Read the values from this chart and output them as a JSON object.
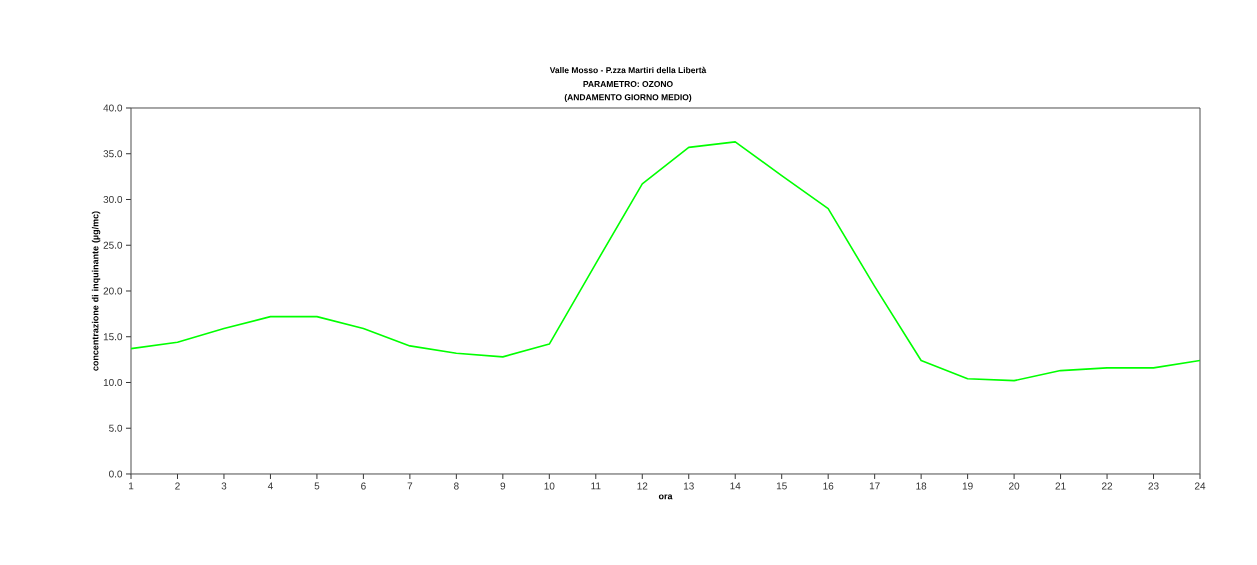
{
  "chart_data": {
    "type": "line",
    "title": "Valle Mosso - P.zza Martiri della Libertà",
    "subtitle": "PARAMETRO: OZONO",
    "annotations": [
      "(ANDAMENTO GIORNO MEDIO)"
    ],
    "xlabel": "ora",
    "ylabel": "concentrazione di inquinante (µg/mc)",
    "x": [
      1,
      2,
      3,
      4,
      5,
      6,
      7,
      8,
      9,
      10,
      11,
      12,
      13,
      14,
      15,
      16,
      17,
      18,
      19,
      20,
      21,
      22,
      23,
      24
    ],
    "series": [
      {
        "color": "#00ff00",
        "values": [
          13.7,
          14.4,
          15.9,
          17.2,
          17.2,
          15.9,
          14.0,
          13.2,
          12.8,
          14.2,
          23.0,
          31.7,
          35.7,
          36.3,
          32.6,
          29.0,
          20.5,
          12.4,
          10.4,
          10.2,
          11.3,
          11.6,
          11.6,
          12.4
        ]
      }
    ],
    "xlim": [
      1,
      24
    ],
    "xticks": [
      1,
      2,
      3,
      4,
      5,
      6,
      7,
      8,
      9,
      10,
      11,
      12,
      13,
      14,
      15,
      16,
      17,
      18,
      19,
      20,
      21,
      22,
      23,
      24
    ],
    "ylim": [
      0,
      40
    ],
    "yticks": [
      {
        "value": 0,
        "label": "0.0"
      },
      {
        "value": 5,
        "label": "5.0"
      },
      {
        "value": 10,
        "label": "10.0"
      },
      {
        "value": 15,
        "label": "15.0"
      },
      {
        "value": 20,
        "label": "20.0"
      },
      {
        "value": 25,
        "label": "25.0"
      },
      {
        "value": 30,
        "label": "30.0"
      },
      {
        "value": 35,
        "label": "35.0"
      },
      {
        "value": 40,
        "label": "40.0"
      }
    ],
    "grid": false,
    "legend": false,
    "marker": "none",
    "line_style": "solid"
  }
}
